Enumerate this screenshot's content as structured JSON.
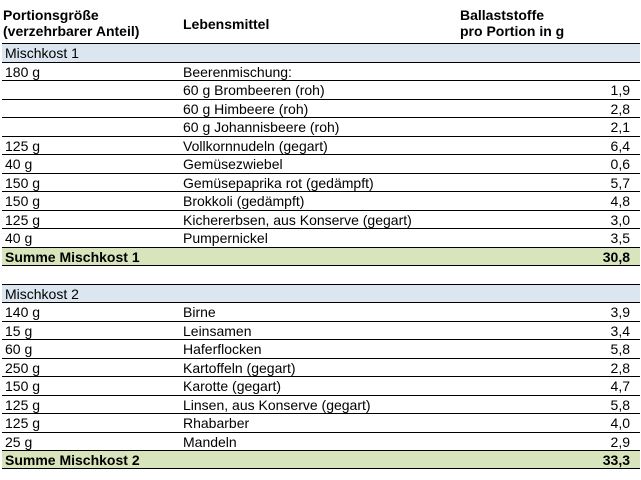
{
  "header": {
    "col1": "Portionsgröße\n(verzehrbarer Anteil)",
    "col2": "Lebensmittel",
    "col3": "Ballaststoffe\npro Portion in g"
  },
  "mix1": {
    "title": "Mischkost 1",
    "rows": [
      {
        "portion": "180 g",
        "food": "Beerenmischung:",
        "fiber": ""
      },
      {
        "portion": "",
        "food": "60 g Brombeeren (roh)",
        "fiber": "1,9"
      },
      {
        "portion": "",
        "food": "60 g Himbeere (roh)",
        "fiber": "2,8"
      },
      {
        "portion": "",
        "food": "60 g Johannisbeere (roh)",
        "fiber": "2,1"
      },
      {
        "portion": "125 g",
        "food": "Vollkornnudeln (gegart)",
        "fiber": "6,4"
      },
      {
        "portion": "40 g",
        "food": "Gemüsezwiebel",
        "fiber": "0,6"
      },
      {
        "portion": "150 g",
        "food": "Gemüsepaprika rot (gedämpft)",
        "fiber": "5,7"
      },
      {
        "portion": "150 g",
        "food": "Brokkoli (gedämpft)",
        "fiber": "4,8"
      },
      {
        "portion": "125 g",
        "food": "Kichererbsen, aus Konserve (gegart)",
        "fiber": "3,0"
      },
      {
        "portion": "40 g",
        "food": "Pumpernickel",
        "fiber": "3,5"
      }
    ],
    "sum_label": "Summe Mischkost 1",
    "sum_value": "30,8"
  },
  "mix2": {
    "title": "Mischkost 2",
    "rows": [
      {
        "portion": "140 g",
        "food": "Birne",
        "fiber": "3,9"
      },
      {
        "portion": "15 g",
        "food": "Leinsamen",
        "fiber": "3,4"
      },
      {
        "portion": "60 g",
        "food": "Haferflocken",
        "fiber": "5,8"
      },
      {
        "portion": "250 g",
        "food": "Kartoffeln (gegart)",
        "fiber": "2,8"
      },
      {
        "portion": "150 g",
        "food": "Karotte (gegart)",
        "fiber": "4,7"
      },
      {
        "portion": "125 g",
        "food": "Linsen, aus Konserve (gegart)",
        "fiber": "5,8"
      },
      {
        "portion": "125 g",
        "food": "Rhabarber",
        "fiber": "4,0"
      },
      {
        "portion": "25 g",
        "food": "Mandeln",
        "fiber": "2,9"
      }
    ],
    "sum_label": "Summe Mischkost 2",
    "sum_value": "33,3"
  }
}
